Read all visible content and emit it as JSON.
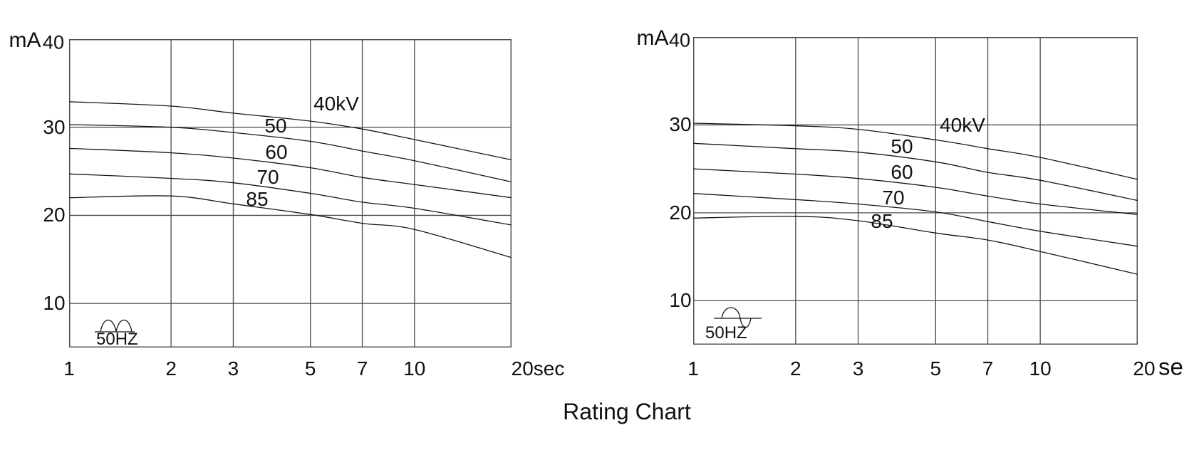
{
  "figure_title": "Rating Chart",
  "colors": {
    "background": "#ffffff",
    "grid": "#4a4a4a",
    "curve": "#161616",
    "text": "#111111"
  },
  "chart_data": [
    {
      "name": "left-rating-chart",
      "type": "line",
      "title": "",
      "x_scale": "log",
      "xlabel": "sec",
      "ylabel": "mA",
      "xlim": [
        1,
        20
      ],
      "ylim": [
        5,
        40
      ],
      "grid": true,
      "y_unit_label": "mA",
      "y_top_tick_label": "40",
      "y_tick_labels": [
        "30",
        "20",
        "10"
      ],
      "y_ticks": [
        40,
        30,
        20,
        10
      ],
      "x_ticks": [
        1,
        2,
        3,
        5,
        7,
        10,
        20
      ],
      "x_tick_labels": [
        "1",
        "2",
        "3",
        "5",
        "7",
        "10"
      ],
      "x_end_label": "20sec",
      "x_end_suffix": "",
      "frequency_label": "50HZ",
      "waveform_icon": "full-wave-rectified-icon",
      "legend": "inline-curve-labels",
      "x": [
        1,
        2,
        3,
        5,
        7,
        10,
        20
      ],
      "series": [
        {
          "name": "40kV",
          "values": [
            32.9,
            32.4,
            31.6,
            30.7,
            29.8,
            28.6,
            26.3
          ]
        },
        {
          "name": "50",
          "values": [
            30.3,
            30.0,
            29.4,
            28.4,
            27.3,
            26.2,
            23.8
          ]
        },
        {
          "name": "60",
          "values": [
            27.6,
            27.1,
            26.5,
            25.4,
            24.3,
            23.5,
            22.0
          ]
        },
        {
          "name": "70",
          "values": [
            24.7,
            24.2,
            23.7,
            22.5,
            21.5,
            20.8,
            18.9
          ]
        },
        {
          "name": "85",
          "values": [
            22.0,
            22.2,
            21.3,
            20.1,
            19.1,
            18.4,
            15.2
          ]
        }
      ]
    },
    {
      "name": "right-rating-chart",
      "type": "line",
      "title": "",
      "x_scale": "log",
      "xlabel": "sec",
      "ylabel": "mA",
      "xlim": [
        1,
        20
      ],
      "ylim": [
        5,
        40
      ],
      "grid": true,
      "y_unit_label": "mA",
      "y_top_tick_label": "40",
      "y_tick_labels": [
        "30",
        "20",
        "10"
      ],
      "y_ticks": [
        40,
        30,
        20,
        10
      ],
      "x_ticks": [
        1,
        2,
        3,
        5,
        7,
        10,
        20
      ],
      "x_tick_labels": [
        "1",
        "2",
        "3",
        "5",
        "7",
        "10"
      ],
      "x_end_label": "20",
      "x_end_suffix": "se",
      "frequency_label": "50HZ",
      "waveform_icon": "sine-wave-icon",
      "legend": "inline-curve-labels",
      "x": [
        1,
        2,
        3,
        5,
        7,
        10,
        20
      ],
      "series": [
        {
          "name": "40kV",
          "values": [
            30.2,
            29.9,
            29.5,
            28.3,
            27.3,
            26.3,
            23.8
          ]
        },
        {
          "name": "50",
          "values": [
            27.9,
            27.3,
            26.9,
            25.8,
            24.6,
            23.7,
            21.4
          ]
        },
        {
          "name": "60",
          "values": [
            25.0,
            24.4,
            23.9,
            22.9,
            21.9,
            21.0,
            19.8
          ]
        },
        {
          "name": "70",
          "values": [
            22.2,
            21.5,
            21.0,
            20.1,
            19.0,
            17.9,
            16.2
          ]
        },
        {
          "name": "85",
          "values": [
            19.4,
            19.6,
            19.1,
            17.7,
            16.9,
            15.6,
            13.0
          ]
        }
      ]
    }
  ]
}
